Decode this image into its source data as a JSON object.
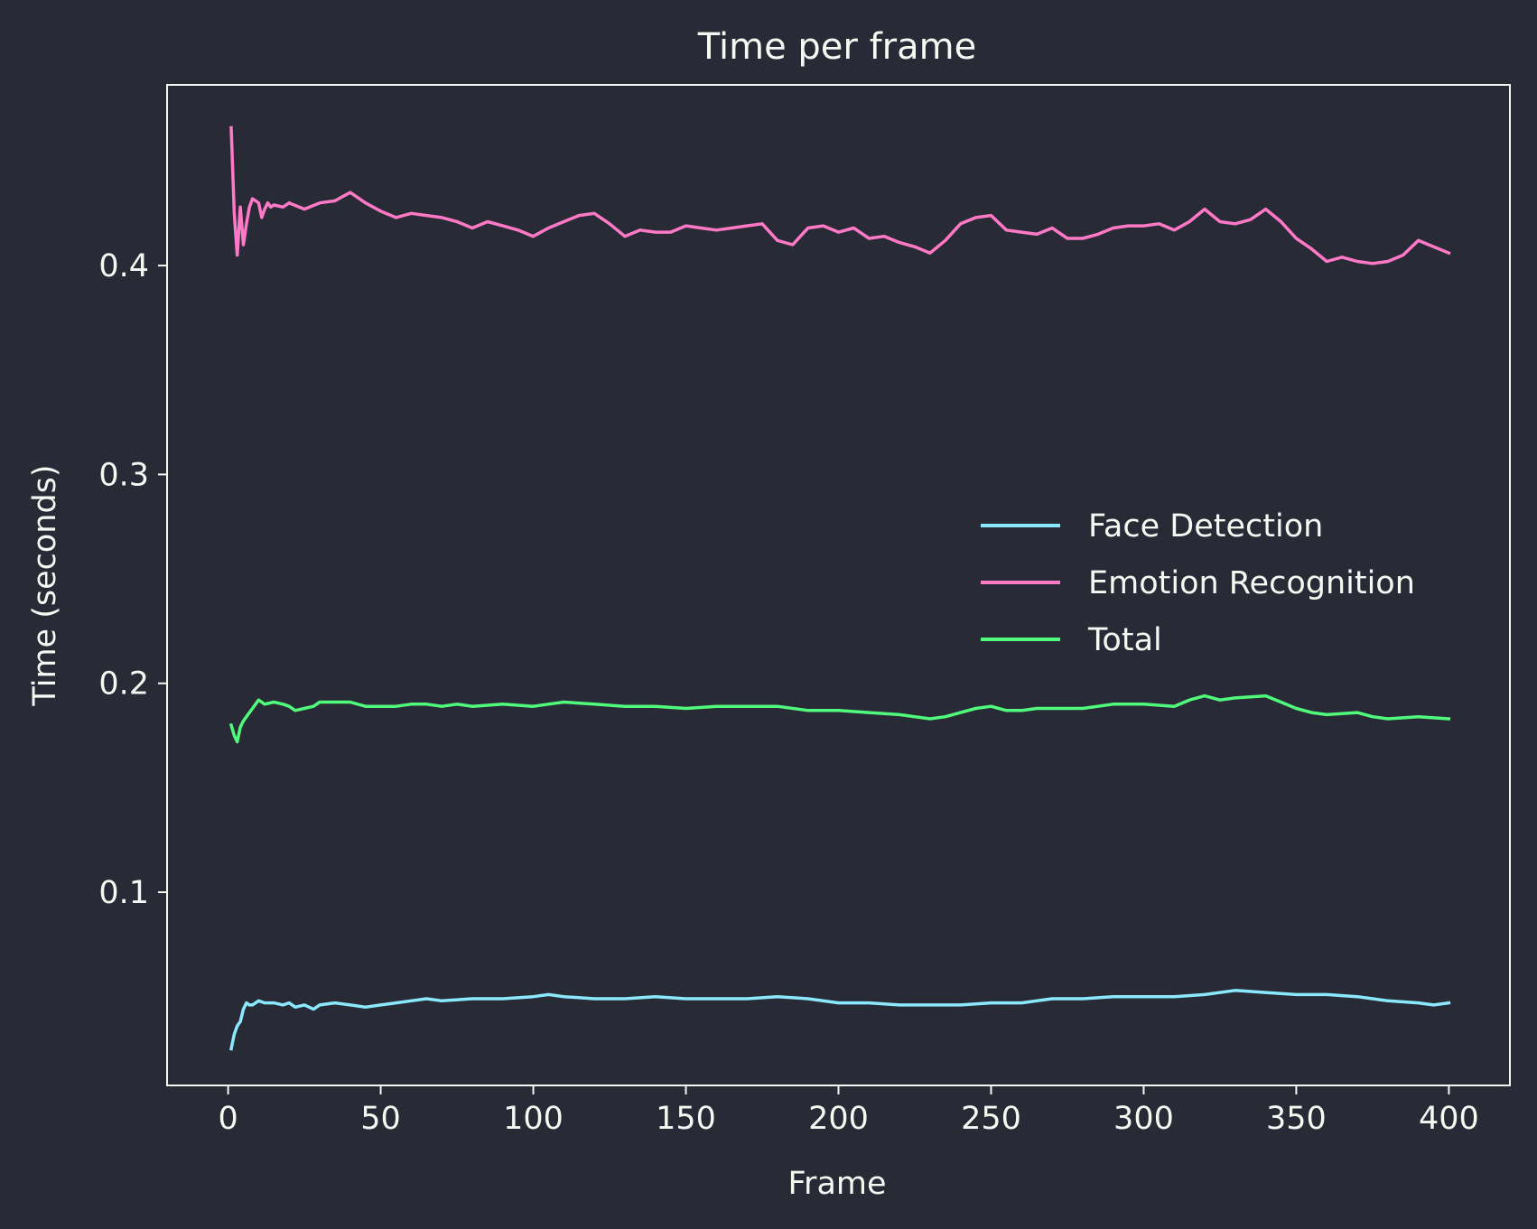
{
  "chart_data": {
    "type": "line",
    "title": "Time per frame",
    "xlabel": "Frame",
    "ylabel": "Time (seconds)",
    "xlim": [
      -20,
      420
    ],
    "ylim": [
      0.0075,
      0.4865
    ],
    "xticks": [
      0,
      50,
      100,
      150,
      200,
      250,
      300,
      350,
      400
    ],
    "xtick_labels": [
      "0",
      "50",
      "100",
      "150",
      "200",
      "250",
      "300",
      "350",
      "400"
    ],
    "yticks": [
      0.1,
      0.2,
      0.3,
      0.4
    ],
    "ytick_labels": [
      "0.1",
      "0.2",
      "0.3",
      "0.4"
    ],
    "grid": false,
    "legend_position": "center-right",
    "background_color": "#282a36",
    "text_color": "#f8f8f2",
    "series": [
      {
        "name": "Face Detection",
        "color": "#8be9fd",
        "x": [
          1,
          2,
          3,
          4,
          5,
          6,
          7,
          8,
          10,
          12,
          15,
          18,
          20,
          22,
          25,
          28,
          30,
          35,
          40,
          45,
          50,
          55,
          60,
          65,
          70,
          80,
          90,
          100,
          105,
          110,
          120,
          130,
          140,
          150,
          160,
          170,
          180,
          190,
          200,
          210,
          220,
          230,
          240,
          250,
          260,
          270,
          280,
          290,
          300,
          310,
          320,
          330,
          340,
          350,
          360,
          370,
          380,
          390,
          395,
          400
        ],
        "values": [
          0.025,
          0.032,
          0.036,
          0.038,
          0.044,
          0.047,
          0.046,
          0.046,
          0.048,
          0.047,
          0.047,
          0.046,
          0.047,
          0.045,
          0.046,
          0.044,
          0.046,
          0.047,
          0.046,
          0.045,
          0.046,
          0.047,
          0.048,
          0.049,
          0.048,
          0.049,
          0.049,
          0.05,
          0.051,
          0.05,
          0.049,
          0.049,
          0.05,
          0.049,
          0.049,
          0.049,
          0.05,
          0.049,
          0.047,
          0.047,
          0.046,
          0.046,
          0.046,
          0.047,
          0.047,
          0.049,
          0.049,
          0.05,
          0.05,
          0.05,
          0.051,
          0.053,
          0.052,
          0.051,
          0.051,
          0.05,
          0.048,
          0.047,
          0.046,
          0.047
        ]
      },
      {
        "name": "Emotion Recognition",
        "color": "#ff79c6",
        "x": [
          1,
          2,
          3,
          4,
          5,
          6,
          7,
          8,
          10,
          11,
          12,
          13,
          14,
          15,
          18,
          20,
          25,
          30,
          35,
          40,
          45,
          50,
          55,
          60,
          65,
          70,
          75,
          80,
          85,
          90,
          95,
          100,
          105,
          110,
          115,
          120,
          125,
          130,
          135,
          140,
          145,
          150,
          155,
          160,
          165,
          170,
          175,
          180,
          185,
          190,
          195,
          200,
          205,
          210,
          215,
          220,
          225,
          230,
          235,
          240,
          245,
          250,
          255,
          260,
          265,
          270,
          275,
          280,
          285,
          290,
          295,
          300,
          305,
          310,
          315,
          320,
          325,
          330,
          335,
          340,
          345,
          350,
          355,
          360,
          365,
          370,
          375,
          380,
          385,
          390,
          395,
          400
        ],
        "values": [
          0.466,
          0.425,
          0.405,
          0.428,
          0.41,
          0.42,
          0.428,
          0.432,
          0.43,
          0.423,
          0.427,
          0.43,
          0.428,
          0.429,
          0.428,
          0.43,
          0.427,
          0.43,
          0.431,
          0.435,
          0.43,
          0.426,
          0.423,
          0.425,
          0.424,
          0.423,
          0.421,
          0.418,
          0.421,
          0.419,
          0.417,
          0.414,
          0.418,
          0.421,
          0.424,
          0.425,
          0.42,
          0.414,
          0.417,
          0.416,
          0.416,
          0.419,
          0.418,
          0.417,
          0.418,
          0.419,
          0.42,
          0.412,
          0.41,
          0.418,
          0.419,
          0.416,
          0.418,
          0.413,
          0.414,
          0.411,
          0.409,
          0.406,
          0.412,
          0.42,
          0.423,
          0.424,
          0.417,
          0.416,
          0.415,
          0.418,
          0.413,
          0.413,
          0.415,
          0.418,
          0.419,
          0.419,
          0.42,
          0.417,
          0.421,
          0.427,
          0.421,
          0.42,
          0.422,
          0.427,
          0.421,
          0.413,
          0.408,
          0.402,
          0.404,
          0.402,
          0.401,
          0.402,
          0.405,
          0.412,
          0.409,
          0.406
        ]
      },
      {
        "name": "Total",
        "color": "#50fa7b",
        "x": [
          1,
          2,
          3,
          4,
          5,
          6,
          7,
          8,
          10,
          12,
          15,
          18,
          20,
          22,
          25,
          28,
          30,
          35,
          40,
          45,
          50,
          55,
          60,
          65,
          70,
          75,
          80,
          90,
          100,
          105,
          110,
          120,
          130,
          140,
          150,
          160,
          170,
          180,
          190,
          200,
          210,
          220,
          230,
          235,
          240,
          245,
          250,
          255,
          260,
          265,
          270,
          280,
          290,
          300,
          310,
          315,
          320,
          325,
          330,
          340,
          345,
          350,
          355,
          360,
          370,
          375,
          380,
          390,
          400
        ],
        "values": [
          0.18,
          0.175,
          0.172,
          0.179,
          0.182,
          0.184,
          0.186,
          0.188,
          0.192,
          0.19,
          0.191,
          0.19,
          0.189,
          0.187,
          0.188,
          0.189,
          0.191,
          0.191,
          0.191,
          0.189,
          0.189,
          0.189,
          0.19,
          0.19,
          0.189,
          0.19,
          0.189,
          0.19,
          0.189,
          0.19,
          0.191,
          0.19,
          0.189,
          0.189,
          0.188,
          0.189,
          0.189,
          0.189,
          0.187,
          0.187,
          0.186,
          0.185,
          0.183,
          0.184,
          0.186,
          0.188,
          0.189,
          0.187,
          0.187,
          0.188,
          0.188,
          0.188,
          0.19,
          0.19,
          0.189,
          0.192,
          0.194,
          0.192,
          0.193,
          0.194,
          0.191,
          0.188,
          0.186,
          0.185,
          0.186,
          0.184,
          0.183,
          0.184,
          0.183
        ]
      }
    ]
  }
}
